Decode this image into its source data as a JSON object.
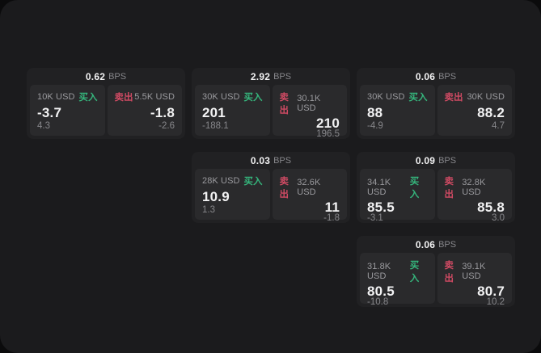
{
  "labels": {
    "bps_unit": "BPS",
    "buy": "买入",
    "sell": "卖出"
  },
  "colors": {
    "buy": "#35b57c",
    "sell": "#cf4a63",
    "window_bg": "#1b1b1d",
    "card_bg": "#212123",
    "panel_bg": "#2a2a2c"
  },
  "cards": [
    {
      "bps": "0.62",
      "buy": {
        "amount": "10K USD",
        "price": "-3.7",
        "delta": "4.3"
      },
      "sell": {
        "amount": "5.5K USD",
        "price": "-1.8",
        "delta": "-2.6"
      }
    },
    {
      "bps": "2.92",
      "buy": {
        "amount": "30K USD",
        "price": "201",
        "delta": "-188.1"
      },
      "sell": {
        "amount": "30.1K USD",
        "price": "210",
        "delta": "196.5"
      }
    },
    {
      "bps": "0.06",
      "buy": {
        "amount": "30K USD",
        "price": "88",
        "delta": "-4.9"
      },
      "sell": {
        "amount": "30K USD",
        "price": "88.2",
        "delta": "4.7"
      }
    },
    {
      "bps": "0.03",
      "buy": {
        "amount": "28K USD",
        "price": "10.9",
        "delta": "1.3"
      },
      "sell": {
        "amount": "32.6K USD",
        "price": "11",
        "delta": "-1.8"
      }
    },
    {
      "bps": "0.09",
      "buy": {
        "amount": "34.1K USD",
        "price": "85.5",
        "delta": "-3.1"
      },
      "sell": {
        "amount": "32.8K USD",
        "price": "85.8",
        "delta": "3.0"
      }
    },
    {
      "bps": "0.06",
      "buy": {
        "amount": "31.8K USD",
        "price": "80.5",
        "delta": "-10.8"
      },
      "sell": {
        "amount": "39.1K USD",
        "price": "80.7",
        "delta": "10.2"
      }
    }
  ]
}
